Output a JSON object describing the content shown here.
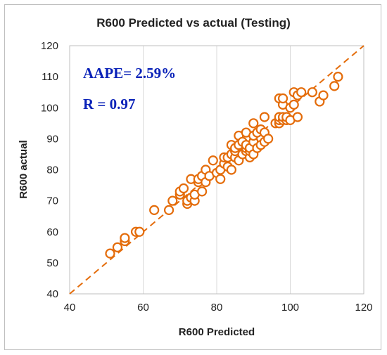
{
  "chart_data": {
    "type": "scatter",
    "title": "R600 Predicted vs actual (Testing)",
    "xlabel": "R600 Predicted",
    "ylabel": "R600 actual",
    "xlim": [
      40,
      120
    ],
    "ylim": [
      40,
      120
    ],
    "xticks": [
      "40",
      "60",
      "80",
      "100",
      "120"
    ],
    "yticks": [
      "40",
      "50",
      "60",
      "70",
      "80",
      "90",
      "100",
      "110",
      "120"
    ],
    "grid": "vertical",
    "annotations": [
      "AAPE= 2.59%",
      "R = 0.97"
    ],
    "reference_line": {
      "style": "dashed",
      "x": [
        40,
        120
      ],
      "y": [
        40,
        120
      ]
    },
    "series": [
      {
        "marker": "open-circle",
        "points": [
          [
            51,
            53
          ],
          [
            53,
            55
          ],
          [
            55,
            57
          ],
          [
            55,
            58
          ],
          [
            58,
            60
          ],
          [
            59,
            60
          ],
          [
            63,
            67
          ],
          [
            67,
            67
          ],
          [
            68,
            70
          ],
          [
            70,
            72
          ],
          [
            70,
            73
          ],
          [
            71,
            74
          ],
          [
            72,
            69
          ],
          [
            72,
            70
          ],
          [
            73,
            71
          ],
          [
            73,
            77
          ],
          [
            74,
            70
          ],
          [
            74,
            72
          ],
          [
            75,
            76
          ],
          [
            75,
            77
          ],
          [
            76,
            73
          ],
          [
            76,
            78
          ],
          [
            77,
            76
          ],
          [
            77,
            80
          ],
          [
            78,
            78
          ],
          [
            79,
            83
          ],
          [
            80,
            79
          ],
          [
            81,
            77
          ],
          [
            81,
            80
          ],
          [
            82,
            82
          ],
          [
            82,
            84
          ],
          [
            83,
            81
          ],
          [
            83,
            84
          ],
          [
            84,
            80
          ],
          [
            84,
            85
          ],
          [
            84,
            88
          ],
          [
            85,
            84
          ],
          [
            85,
            86
          ],
          [
            85,
            87
          ],
          [
            86,
            83
          ],
          [
            86,
            88
          ],
          [
            86,
            91
          ],
          [
            87,
            85
          ],
          [
            87,
            89
          ],
          [
            88,
            86
          ],
          [
            88,
            87
          ],
          [
            88,
            88
          ],
          [
            88,
            92
          ],
          [
            89,
            84
          ],
          [
            89,
            86
          ],
          [
            89,
            87
          ],
          [
            90,
            85
          ],
          [
            90,
            89
          ],
          [
            90,
            91
          ],
          [
            90,
            95
          ],
          [
            91,
            87
          ],
          [
            91,
            92
          ],
          [
            92,
            88
          ],
          [
            92,
            93
          ],
          [
            93,
            89
          ],
          [
            93,
            92
          ],
          [
            93,
            97
          ],
          [
            94,
            90
          ],
          [
            96,
            95
          ],
          [
            97,
            95
          ],
          [
            97,
            96
          ],
          [
            97,
            97
          ],
          [
            97,
            103
          ],
          [
            98,
            96
          ],
          [
            98,
            97
          ],
          [
            98,
            101
          ],
          [
            98,
            103
          ],
          [
            99,
            96
          ],
          [
            99,
            97
          ],
          [
            100,
            96
          ],
          [
            100,
            100
          ],
          [
            101,
            101
          ],
          [
            101,
            105
          ],
          [
            102,
            97
          ],
          [
            102,
            104
          ],
          [
            103,
            105
          ],
          [
            106,
            105
          ],
          [
            108,
            102
          ],
          [
            109,
            104
          ],
          [
            112,
            107
          ],
          [
            113,
            110
          ]
        ]
      }
    ]
  },
  "colors": {
    "marker": "#E46C0A",
    "reference_line": "#E46C0A",
    "annotation": "#0A22B8",
    "grid": "#d9d9d9",
    "text": "#222222"
  }
}
